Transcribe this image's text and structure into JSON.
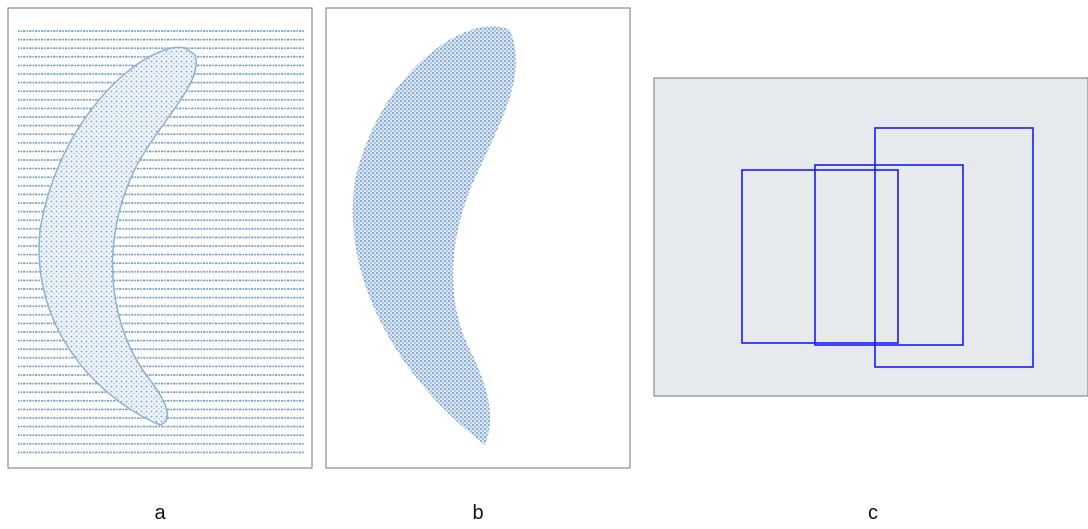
{
  "figure": {
    "panels": [
      {
        "label": "a"
      },
      {
        "label": "b"
      },
      {
        "label": "c"
      }
    ]
  }
}
